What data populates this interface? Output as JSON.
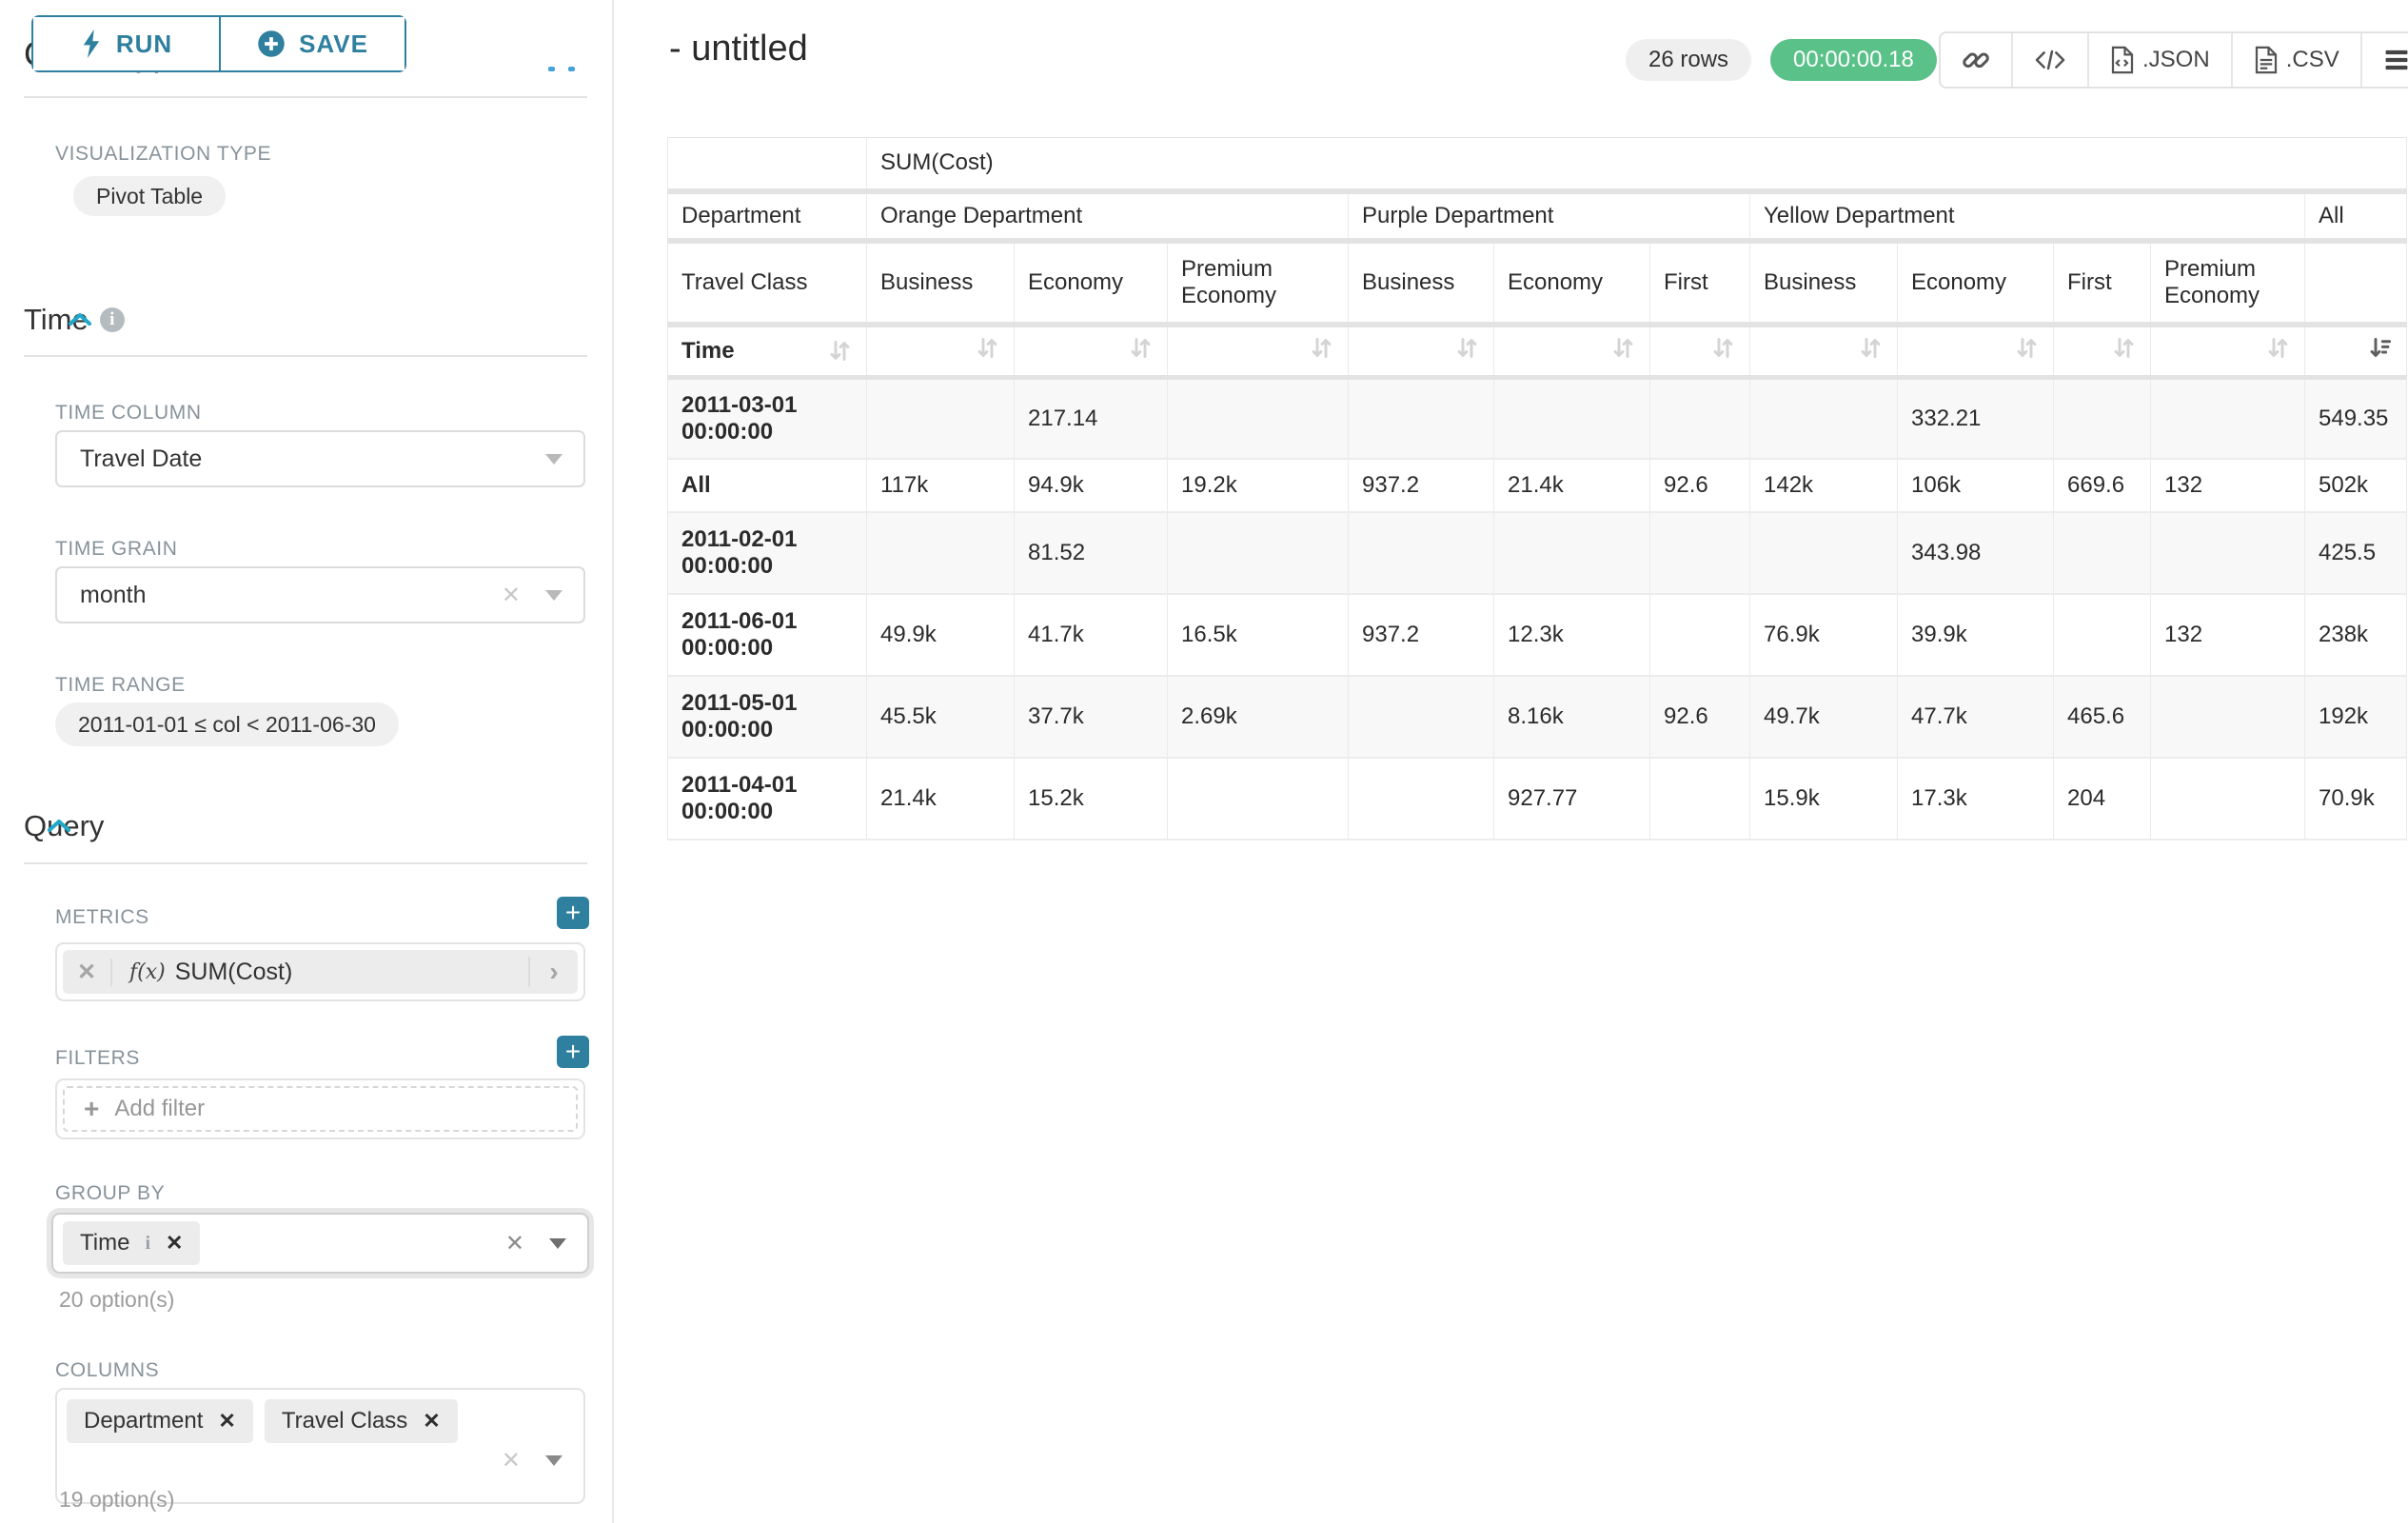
{
  "colors": {
    "accent_teal": "#2f7f9f",
    "accent_blue": "#1fa8c9",
    "badge_green": "#5ac189",
    "pill_gray": "#f0f0f0",
    "border_gray": "#e3e3e3"
  },
  "sidebar": {
    "run_button": "RUN",
    "save_button": "SAVE",
    "chart_type_section": "Chart Type",
    "visualization_type_label": "VISUALIZATION TYPE",
    "visualization_type": "Pivot Table",
    "time_section": "Time",
    "time_column_label": "TIME COLUMN",
    "time_column_value": "Travel Date",
    "time_grain_label": "TIME GRAIN",
    "time_grain_value": "month",
    "time_range_label": "TIME RANGE",
    "time_range_value": "2011-01-01 ≤ col < 2011-06-30",
    "query_section": "Query",
    "metrics_label": "METRICS",
    "metric_fx": "f(x)",
    "metric_value": "SUM(Cost)",
    "filters_label": "FILTERS",
    "add_filter_placeholder": "Add filter",
    "group_by_label": "GROUP BY",
    "group_by_values": [
      "Time"
    ],
    "group_by_hint": "20 option(s)",
    "columns_label": "COLUMNS",
    "columns_values": [
      "Department",
      "Travel Class"
    ],
    "columns_hint": "19 option(s)"
  },
  "header": {
    "title": "- untitled",
    "row_count_badge": "26 rows",
    "query_time_badge": "00:00:00.18",
    "export_json_label": ".JSON",
    "export_csv_label": ".CSV"
  },
  "pivot": {
    "metric_header": "SUM(Cost)",
    "department_header": "Department",
    "travel_class_header": "Travel Class",
    "time_header": "Time",
    "groups": [
      {
        "label": "Orange Department",
        "span": 3
      },
      {
        "label": "Purple Department",
        "span": 3
      },
      {
        "label": "Yellow Department",
        "span": 4
      },
      {
        "label": "All",
        "span": 1
      }
    ],
    "class_headers": [
      "Business",
      "Economy",
      "Premium Economy",
      "Business",
      "Economy",
      "First",
      "Business",
      "Economy",
      "First",
      "Premium Economy",
      ""
    ],
    "rows": [
      {
        "label": "2011-03-01 00:00:00",
        "values": [
          "",
          "217.14",
          "",
          "",
          "",
          "",
          "",
          "332.21",
          "",
          "",
          "549.35"
        ]
      },
      {
        "label": "All",
        "values": [
          "117k",
          "94.9k",
          "19.2k",
          "937.2",
          "21.4k",
          "92.6",
          "142k",
          "106k",
          "669.6",
          "132",
          "502k"
        ]
      },
      {
        "label": "2011-02-01 00:00:00",
        "values": [
          "",
          "81.52",
          "",
          "",
          "",
          "",
          "",
          "343.98",
          "",
          "",
          "425.5"
        ]
      },
      {
        "label": "2011-06-01 00:00:00",
        "values": [
          "49.9k",
          "41.7k",
          "16.5k",
          "937.2",
          "12.3k",
          "",
          "76.9k",
          "39.9k",
          "",
          "132",
          "238k"
        ]
      },
      {
        "label": "2011-05-01 00:00:00",
        "values": [
          "45.5k",
          "37.7k",
          "2.69k",
          "",
          "8.16k",
          "92.6",
          "49.7k",
          "47.7k",
          "465.6",
          "",
          "192k"
        ]
      },
      {
        "label": "2011-04-01 00:00:00",
        "values": [
          "21.4k",
          "15.2k",
          "",
          "",
          "927.77",
          "",
          "15.9k",
          "17.3k",
          "204",
          "",
          "70.9k"
        ]
      }
    ]
  }
}
